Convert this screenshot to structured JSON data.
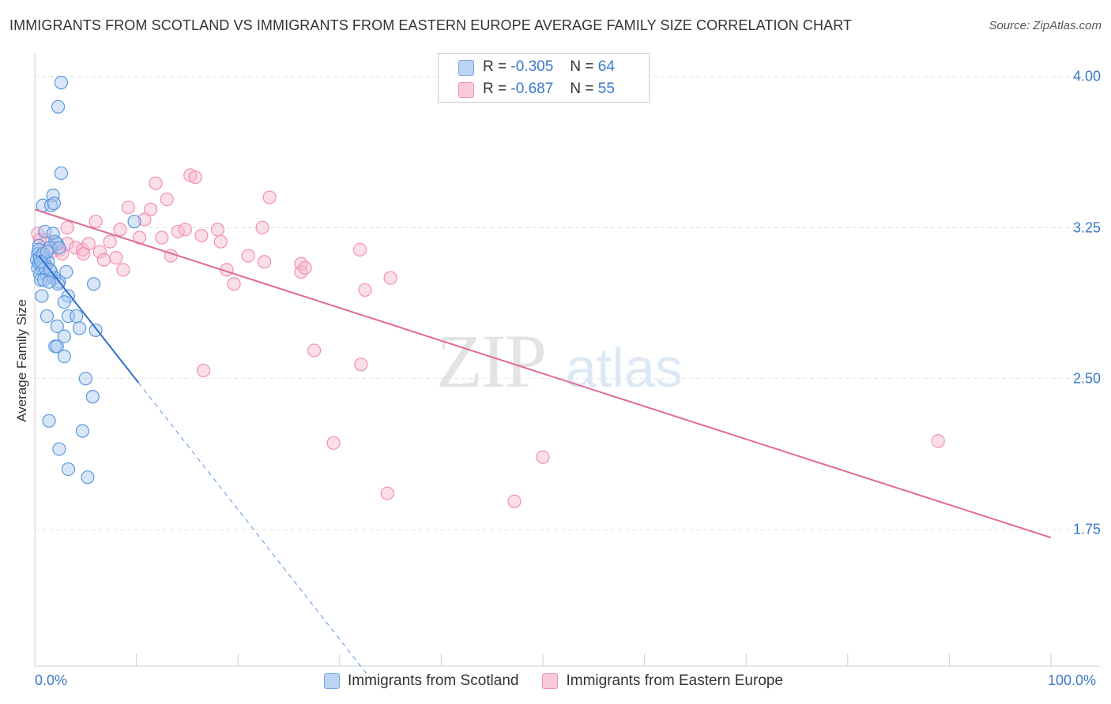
{
  "title": "IMMIGRANTS FROM SCOTLAND VS IMMIGRANTS FROM EASTERN EUROPE AVERAGE FAMILY SIZE CORRELATION CHART",
  "source": "Source: ZipAtlas.com",
  "watermark": {
    "part1": "ZIP",
    "part2": "atlas"
  },
  "legend": {
    "r_label": "R =",
    "n_label": "N =",
    "rows": [
      {
        "r": "-0.305",
        "n": "64",
        "color": "#6fa8e8"
      },
      {
        "r": "-0.687",
        "n": "55",
        "color": "#f28fb0"
      }
    ]
  },
  "colors": {
    "blue": "#3a78c9",
    "blue_fill": "#a9c8f0",
    "pink": "#e06a95",
    "pink_fill": "#f6b9cc"
  },
  "chart_data": {
    "type": "scatter",
    "ylabel": "Average Family Size",
    "x_tick_labels": [
      "0.0%",
      "100.0%"
    ],
    "y_tick_labels": [
      "4.00",
      "3.25",
      "2.50",
      "1.75"
    ],
    "xlim": [
      0,
      100
    ],
    "ylim": [
      1.0,
      4.1
    ],
    "grid": true,
    "series": [
      {
        "name": "Immigrants from Scotland",
        "color": "#6fa8e8",
        "points": [
          [
            2.6,
            3.97
          ],
          [
            2.3,
            3.85
          ],
          [
            2.6,
            3.52
          ],
          [
            1.8,
            3.41
          ],
          [
            0.8,
            3.36
          ],
          [
            1.6,
            3.36
          ],
          [
            1.9,
            3.37
          ],
          [
            1.0,
            3.23
          ],
          [
            1.8,
            3.22
          ],
          [
            2.0,
            3.18
          ],
          [
            2.2,
            3.17
          ],
          [
            0.4,
            3.16
          ],
          [
            1.5,
            3.15
          ],
          [
            2.4,
            3.15
          ],
          [
            0.3,
            3.12
          ],
          [
            0.5,
            3.1
          ],
          [
            0.7,
            3.11
          ],
          [
            0.2,
            3.09
          ],
          [
            0.9,
            3.09
          ],
          [
            1.3,
            3.08
          ],
          [
            0.4,
            3.07
          ],
          [
            0.6,
            3.06
          ],
          [
            1.1,
            3.06
          ],
          [
            0.3,
            3.05
          ],
          [
            0.8,
            3.04
          ],
          [
            1.6,
            3.03
          ],
          [
            0.5,
            3.02
          ],
          [
            1.2,
            3.01
          ],
          [
            1.9,
            3.0
          ],
          [
            0.6,
            2.99
          ],
          [
            0.9,
            2.99
          ],
          [
            3.1,
            3.03
          ],
          [
            2.4,
            2.98
          ],
          [
            2.3,
            2.97
          ],
          [
            5.8,
            2.97
          ],
          [
            1.4,
            2.98
          ],
          [
            0.7,
            2.91
          ],
          [
            3.3,
            2.91
          ],
          [
            2.9,
            2.88
          ],
          [
            1.2,
            2.81
          ],
          [
            3.3,
            2.81
          ],
          [
            4.1,
            2.81
          ],
          [
            2.2,
            2.76
          ],
          [
            4.4,
            2.75
          ],
          [
            6.0,
            2.74
          ],
          [
            2.9,
            2.71
          ],
          [
            2.0,
            2.66
          ],
          [
            2.2,
            2.66
          ],
          [
            2.9,
            2.61
          ],
          [
            9.8,
            3.28
          ],
          [
            5.0,
            2.5
          ],
          [
            5.7,
            2.41
          ],
          [
            1.4,
            2.29
          ],
          [
            4.7,
            2.24
          ],
          [
            2.4,
            2.15
          ],
          [
            3.3,
            2.05
          ],
          [
            5.2,
            2.01
          ],
          [
            0.5,
            3.1
          ],
          [
            1.0,
            3.05
          ],
          [
            0.4,
            3.14
          ],
          [
            0.8,
            3.12
          ],
          [
            1.5,
            3.04
          ],
          [
            0.6,
            3.08
          ],
          [
            1.2,
            3.13
          ]
        ],
        "trend": {
          "x": [
            0.4,
            10.2
          ],
          "y": [
            3.11,
            2.48
          ]
        },
        "trend_extension": {
          "x": [
            10.2,
            33.5
          ],
          "y": [
            2.48,
            0.98
          ]
        }
      },
      {
        "name": "Immigrants from Eastern Europe",
        "color": "#f28fb0",
        "points": [
          [
            0.3,
            3.22
          ],
          [
            1.1,
            3.19
          ],
          [
            1.8,
            3.15
          ],
          [
            2.5,
            3.14
          ],
          [
            3.2,
            3.17
          ],
          [
            4.0,
            3.15
          ],
          [
            4.7,
            3.14
          ],
          [
            5.3,
            3.17
          ],
          [
            6.4,
            3.13
          ],
          [
            6.8,
            3.09
          ],
          [
            7.4,
            3.18
          ],
          [
            8.0,
            3.1
          ],
          [
            8.7,
            3.04
          ],
          [
            3.2,
            3.25
          ],
          [
            6.0,
            3.28
          ],
          [
            8.4,
            3.24
          ],
          [
            9.2,
            3.35
          ],
          [
            10.3,
            3.2
          ],
          [
            10.8,
            3.29
          ],
          [
            11.4,
            3.34
          ],
          [
            11.9,
            3.47
          ],
          [
            12.5,
            3.2
          ],
          [
            13.0,
            3.39
          ],
          [
            13.4,
            3.11
          ],
          [
            14.1,
            3.23
          ],
          [
            14.8,
            3.24
          ],
          [
            15.3,
            3.51
          ],
          [
            15.8,
            3.5
          ],
          [
            16.4,
            3.21
          ],
          [
            18.0,
            3.24
          ],
          [
            18.3,
            3.18
          ],
          [
            18.9,
            3.04
          ],
          [
            19.6,
            2.97
          ],
          [
            21.0,
            3.11
          ],
          [
            22.4,
            3.25
          ],
          [
            22.6,
            3.08
          ],
          [
            23.1,
            3.4
          ],
          [
            26.2,
            3.07
          ],
          [
            26.2,
            3.03
          ],
          [
            26.6,
            3.05
          ],
          [
            32.0,
            3.14
          ],
          [
            32.5,
            2.94
          ],
          [
            35.0,
            3.0
          ],
          [
            16.6,
            2.54
          ],
          [
            27.5,
            2.64
          ],
          [
            32.1,
            2.57
          ],
          [
            29.4,
            2.18
          ],
          [
            34.7,
            1.93
          ],
          [
            50.0,
            2.11
          ],
          [
            47.2,
            1.89
          ],
          [
            88.9,
            2.19
          ],
          [
            1.6,
            3.13
          ],
          [
            2.7,
            3.12
          ],
          [
            0.5,
            3.19
          ],
          [
            4.8,
            3.12
          ]
        ],
        "trend": {
          "x": [
            0.0,
            100.0
          ],
          "y": [
            3.34,
            1.71
          ]
        }
      }
    ]
  }
}
